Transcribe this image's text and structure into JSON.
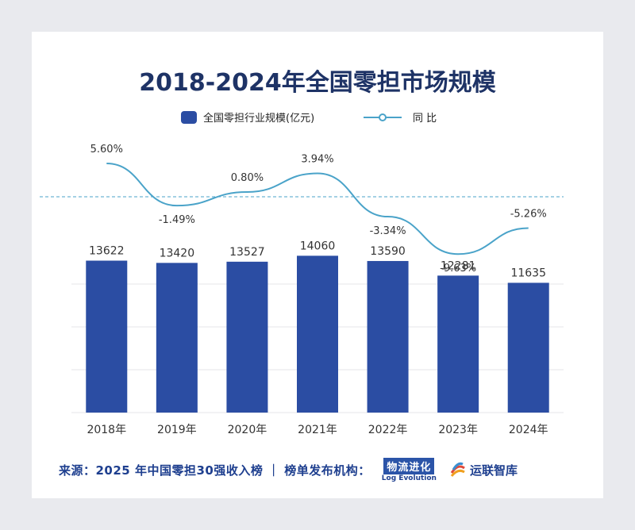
{
  "chart_data": {
    "type": "bar",
    "title": "2018-2024年全国零担市场规模",
    "categories": [
      "2018年",
      "2019年",
      "2020年",
      "2021年",
      "2022年",
      "2023年",
      "2024年"
    ],
    "series": [
      {
        "name": "全国零担行业规模(亿元)",
        "kind": "bar",
        "values": [
          13622,
          13420,
          13527,
          14060,
          13590,
          12281,
          11635
        ]
      },
      {
        "name": "同 比",
        "kind": "line",
        "values": [
          5.6,
          -1.49,
          0.8,
          3.94,
          -3.34,
          -9.63,
          -5.26
        ],
        "labels": [
          "5.60%",
          "-1.49%",
          "0.80%",
          "3.94%",
          "-3.34%",
          "-9.63%",
          "-5.26%"
        ]
      }
    ],
    "bar_ylim": [
      0,
      17500
    ],
    "line_ylim": [
      -12,
      8
    ],
    "reference_line": 0,
    "gridlines": true,
    "legend": "top-center"
  },
  "footer": {
    "source": "来源：2025 年中国零担30强收入榜 ｜ 榜单发布机构：",
    "logo1_cn": "物流进化",
    "logo1_en": "Log Evolution",
    "logo2": "运联智库"
  },
  "colors": {
    "bar": "#2b4da3",
    "line": "#4aa3c9",
    "title": "#1e3366",
    "reference": "#4aa3c9"
  }
}
